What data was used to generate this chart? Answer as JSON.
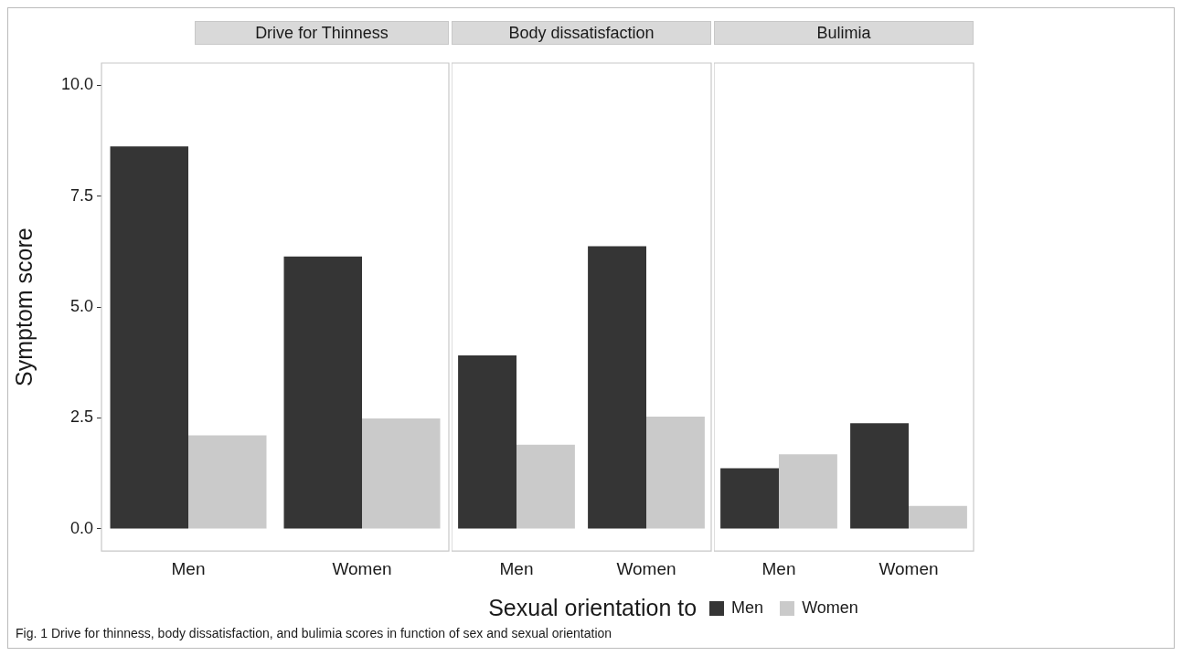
{
  "chart_data": [
    {
      "type": "bar",
      "title": "Drive for Thinness",
      "ylabel": "Symptom score",
      "legend_title": "Sexual orientation to",
      "legend": "bottom",
      "grid": false,
      "categories": [
        "Men",
        "Women"
      ],
      "ylim": [
        -0.5,
        10.5
      ],
      "yticks": [
        {
          "value": 0,
          "label": "0.0"
        },
        2.5,
        {
          "value": 5,
          "label": "5.0"
        },
        7.5,
        {
          "value": 10,
          "label": "10.0"
        }
      ],
      "annotations": [
        "Fig. 1  Drive for thinness, body dissatisfaction, and bulimia scores in function of sex and sexual orientation"
      ],
      "series": [
        {
          "name": "Men",
          "color": "#353535",
          "values": [
            8.62,
            6.14
          ]
        },
        {
          "name": "Women",
          "color": "#cacaca",
          "values": [
            2.11,
            2.49
          ]
        }
      ]
    },
    {
      "type": "bar",
      "title": "Body dissatisfaction",
      "grid": false,
      "tick_labels": "x",
      "categories": [
        "Men",
        "Women"
      ],
      "ylim": [
        -0.5,
        10.5
      ],
      "series": [
        {
          "color": "#353535",
          "values": [
            3.91,
            6.37
          ]
        },
        {
          "color": "#cacaca",
          "values": [
            1.9,
            2.53
          ]
        }
      ]
    },
    {
      "type": "bar",
      "title": "Bulimia",
      "grid": false,
      "tick_labels": "x",
      "categories": [
        "Men",
        "Women"
      ],
      "ylim": [
        -0.5,
        10.5
      ],
      "series": [
        {
          "color": "#353535",
          "values": [
            1.37,
            2.38
          ]
        },
        {
          "color": "#cacaca",
          "values": [
            1.68,
            0.52
          ]
        }
      ]
    }
  ]
}
